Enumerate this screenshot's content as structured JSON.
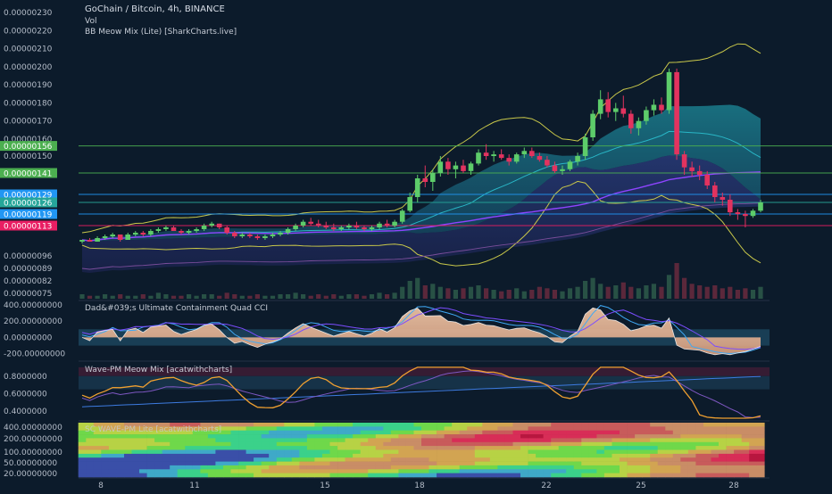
{
  "header": {
    "title": "GoChain / Bitcoin, 4h, BINANCE",
    "vol": "Vol",
    "indicator": "BB Meow Mix (Lite) [SharkCharts.live]"
  },
  "colors": {
    "background": "#0c1b2b",
    "up": "#5dcc6a",
    "down": "#e2335f",
    "label_green": "#4caf50",
    "label_blue": "#2196f3",
    "label_red": "#e91e63",
    "label_teal": "#26a69a",
    "band_yellow": "#c9c84a",
    "ma_purple": "#8e44ff",
    "wave_orange": "#f0a030"
  },
  "chart_data": [
    {
      "type": "candlestick",
      "title": "GoChain / Bitcoin, 4h, BINANCE",
      "y_ticks": [
        "0.00000230",
        "0.00000220",
        "0.00000210",
        "0.00000200",
        "0.00000190",
        "0.00000180",
        "0.00000170",
        "0.00000160",
        "0.00000150",
        "0.00000096",
        "0.00000089",
        "0.00000082",
        "0.00000075"
      ],
      "x_ticks": [
        "8",
        "11",
        "15",
        "18",
        "22",
        "25",
        "28"
      ],
      "price_labels": [
        {
          "text": "0.00000156",
          "color": "#4caf50"
        },
        {
          "text": "0.00000141",
          "color": "#4caf50"
        },
        {
          "text": "0.00000129",
          "color": "#2196f3"
        },
        {
          "text": "0.00000126",
          "color": "#26a69a"
        },
        {
          "text": "0.00000119",
          "color": "#2196f3"
        },
        {
          "text": "0.00000113",
          "color": "#e91e63"
        }
      ],
      "candles": [
        [
          1.04e-06,
          1.05e-06,
          1.03e-06,
          1.05e-06
        ],
        [
          1.05e-06,
          1.06e-06,
          1.04e-06,
          1.04e-06
        ],
        [
          1.04e-06,
          1.07e-06,
          1.04e-06,
          1.06e-06
        ],
        [
          1.06e-06,
          1.08e-06,
          1.05e-06,
          1.07e-06
        ],
        [
          1.07e-06,
          1.09e-06,
          1.06e-06,
          1.08e-06
        ],
        [
          1.08e-06,
          1.08e-06,
          1.04e-06,
          1.05e-06
        ],
        [
          1.05e-06,
          1.09e-06,
          1.05e-06,
          1.08e-06
        ],
        [
          1.08e-06,
          1.1e-06,
          1.07e-06,
          1.09e-06
        ],
        [
          1.09e-06,
          1.1e-06,
          1.07e-06,
          1.08e-06
        ],
        [
          1.08e-06,
          1.11e-06,
          1.07e-06,
          1.1e-06
        ],
        [
          1.1e-06,
          1.12e-06,
          1.09e-06,
          1.11e-06
        ],
        [
          1.11e-06,
          1.13e-06,
          1.1e-06,
          1.12e-06
        ],
        [
          1.12e-06,
          1.13e-06,
          1.1e-06,
          1.1e-06
        ],
        [
          1.1e-06,
          1.11e-06,
          1.08e-06,
          1.09e-06
        ],
        [
          1.09e-06,
          1.11e-06,
          1.08e-06,
          1.1e-06
        ],
        [
          1.1e-06,
          1.12e-06,
          1.09e-06,
          1.11e-06
        ],
        [
          1.11e-06,
          1.14e-06,
          1.1e-06,
          1.13e-06
        ],
        [
          1.13e-06,
          1.15e-06,
          1.12e-06,
          1.14e-06
        ],
        [
          1.14e-06,
          1.14e-06,
          1.11e-06,
          1.12e-06
        ],
        [
          1.12e-06,
          1.13e-06,
          1.08e-06,
          1.09e-06
        ],
        [
          1.09e-06,
          1.1e-06,
          1.06e-06,
          1.07e-06
        ],
        [
          1.07e-06,
          1.09e-06,
          1.06e-06,
          1.08e-06
        ],
        [
          1.08e-06,
          1.09e-06,
          1.06e-06,
          1.07e-06
        ],
        [
          1.07e-06,
          1.08e-06,
          1.05e-06,
          1.06e-06
        ],
        [
          1.06e-06,
          1.08e-06,
          1.05e-06,
          1.07e-06
        ],
        [
          1.07e-06,
          1.09e-06,
          1.06e-06,
          1.08e-06
        ],
        [
          1.08e-06,
          1.1e-06,
          1.07e-06,
          1.09e-06
        ],
        [
          1.09e-06,
          1.12e-06,
          1.08e-06,
          1.11e-06
        ],
        [
          1.11e-06,
          1.14e-06,
          1.1e-06,
          1.13e-06
        ],
        [
          1.13e-06,
          1.16e-06,
          1.12e-06,
          1.15e-06
        ],
        [
          1.15e-06,
          1.17e-06,
          1.13e-06,
          1.14e-06
        ],
        [
          1.14e-06,
          1.16e-06,
          1.12e-06,
          1.13e-06
        ],
        [
          1.13e-06,
          1.15e-06,
          1.11e-06,
          1.12e-06
        ],
        [
          1.12e-06,
          1.14e-06,
          1.1e-06,
          1.11e-06
        ],
        [
          1.11e-06,
          1.13e-06,
          1.1e-06,
          1.12e-06
        ],
        [
          1.12e-06,
          1.14e-06,
          1.11e-06,
          1.13e-06
        ],
        [
          1.13e-06,
          1.15e-06,
          1.11e-06,
          1.12e-06
        ],
        [
          1.12e-06,
          1.13e-06,
          1.1e-06,
          1.11e-06
        ],
        [
          1.11e-06,
          1.13e-06,
          1.1e-06,
          1.12e-06
        ],
        [
          1.12e-06,
          1.15e-06,
          1.11e-06,
          1.14e-06
        ],
        [
          1.14e-06,
          1.16e-06,
          1.12e-06,
          1.13e-06
        ],
        [
          1.13e-06,
          1.16e-06,
          1.12e-06,
          1.15e-06
        ],
        [
          1.15e-06,
          1.22e-06,
          1.14e-06,
          1.21e-06
        ],
        [
          1.21e-06,
          1.3e-06,
          1.2e-06,
          1.28e-06
        ],
        [
          1.28e-06,
          1.4e-06,
          1.26e-06,
          1.38e-06
        ],
        [
          1.38e-06,
          1.45e-06,
          1.33e-06,
          1.36e-06
        ],
        [
          1.36e-06,
          1.43e-06,
          1.31e-06,
          1.41e-06
        ],
        [
          1.41e-06,
          1.5e-06,
          1.39e-06,
          1.47e-06
        ],
        [
          1.47e-06,
          1.49e-06,
          1.4e-06,
          1.43e-06
        ],
        [
          1.43e-06,
          1.47e-06,
          1.38e-06,
          1.45e-06
        ],
        [
          1.45e-06,
          1.48e-06,
          1.41e-06,
          1.42e-06
        ],
        [
          1.42e-06,
          1.47e-06,
          1.4e-06,
          1.46e-06
        ],
        [
          1.46e-06,
          1.54e-06,
          1.45e-06,
          1.52e-06
        ],
        [
          1.52e-06,
          1.57e-06,
          1.48e-06,
          1.5e-06
        ],
        [
          1.5e-06,
          1.53e-06,
          1.47e-06,
          1.51e-06
        ],
        [
          1.51e-06,
          1.54e-06,
          1.48e-06,
          1.49e-06
        ],
        [
          1.49e-06,
          1.51e-06,
          1.45e-06,
          1.47e-06
        ],
        [
          1.47e-06,
          1.52e-06,
          1.46e-06,
          1.51e-06
        ],
        [
          1.51e-06,
          1.55e-06,
          1.49e-06,
          1.53e-06
        ],
        [
          1.53e-06,
          1.55e-06,
          1.49e-06,
          1.5e-06
        ],
        [
          1.5e-06,
          1.52e-06,
          1.47e-06,
          1.48e-06
        ],
        [
          1.48e-06,
          1.5e-06,
          1.44e-06,
          1.45e-06
        ],
        [
          1.45e-06,
          1.47e-06,
          1.41e-06,
          1.42e-06
        ],
        [
          1.42e-06,
          1.45e-06,
          1.4e-06,
          1.43e-06
        ],
        [
          1.43e-06,
          1.48e-06,
          1.42e-06,
          1.47e-06
        ],
        [
          1.47e-06,
          1.52e-06,
          1.45e-06,
          1.5e-06
        ],
        [
          1.5e-06,
          1.63e-06,
          1.48e-06,
          1.61e-06
        ],
        [
          1.61e-06,
          1.76e-06,
          1.59e-06,
          1.74e-06
        ],
        [
          1.74e-06,
          1.87e-06,
          1.71e-06,
          1.82e-06
        ],
        [
          1.82e-06,
          1.86e-06,
          1.72e-06,
          1.75e-06
        ],
        [
          1.75e-06,
          1.8e-06,
          1.7e-06,
          1.77e-06
        ],
        [
          1.77e-06,
          1.84e-06,
          1.72e-06,
          1.74e-06
        ],
        [
          1.74e-06,
          1.76e-06,
          1.63e-06,
          1.66e-06
        ],
        [
          1.66e-06,
          1.72e-06,
          1.62e-06,
          1.7e-06
        ],
        [
          1.7e-06,
          1.78e-06,
          1.68e-06,
          1.76e-06
        ],
        [
          1.76e-06,
          1.82e-06,
          1.73e-06,
          1.79e-06
        ],
        [
          1.79e-06,
          1.83e-06,
          1.74e-06,
          1.76e-06
        ],
        [
          1.76e-06,
          1.99e-06,
          1.74e-06,
          1.97e-06
        ],
        [
          1.97e-06,
          1.99e-06,
          1.48e-06,
          1.51e-06
        ],
        [
          1.51e-06,
          1.53e-06,
          1.4e-06,
          1.44e-06
        ],
        [
          1.44e-06,
          1.47e-06,
          1.39e-06,
          1.42e-06
        ],
        [
          1.42e-06,
          1.45e-06,
          1.37e-06,
          1.4e-06
        ],
        [
          1.4e-06,
          1.42e-06,
          1.32e-06,
          1.34e-06
        ],
        [
          1.34e-06,
          1.36e-06,
          1.26e-06,
          1.28e-06
        ],
        [
          1.28e-06,
          1.3e-06,
          1.24e-06,
          1.27e-06
        ],
        [
          1.27e-06,
          1.29e-06,
          1.18e-06,
          1.2e-06
        ],
        [
          1.2e-06,
          1.22e-06,
          1.16e-06,
          1.19e-06
        ],
        [
          1.19e-06,
          1.21e-06,
          1.12e-06,
          1.18e-06
        ],
        [
          1.18e-06,
          1.22e-06,
          1.17e-06,
          1.21e-06
        ],
        [
          1.21e-06,
          1.27e-06,
          1.2e-06,
          1.26e-06
        ]
      ],
      "volume": [
        3,
        2,
        2,
        3,
        2,
        3,
        2,
        2,
        3,
        2,
        4,
        3,
        2,
        2,
        3,
        2,
        3,
        3,
        2,
        4,
        3,
        2,
        2,
        3,
        2,
        2,
        3,
        3,
        4,
        3,
        2,
        3,
        2,
        3,
        2,
        3,
        3,
        2,
        3,
        4,
        3,
        4,
        8,
        12,
        14,
        9,
        10,
        8,
        7,
        6,
        7,
        8,
        9,
        7,
        6,
        5,
        6,
        7,
        5,
        6,
        8,
        7,
        6,
        5,
        7,
        8,
        12,
        14,
        10,
        8,
        9,
        11,
        8,
        7,
        9,
        10,
        8,
        16,
        24,
        14,
        10,
        9,
        8,
        9,
        7,
        8,
        6,
        7,
        6,
        8
      ]
    },
    {
      "type": "line",
      "title": "Dad&#039;s Ultimate Containment Quad CCI",
      "y_ticks": [
        "400.00000000",
        "200.00000000",
        "0.00000000",
        "-200.00000000"
      ],
      "ylim": [
        -280,
        420
      ]
    },
    {
      "type": "line",
      "title": "Wave-PM Meow Mix [acatwithcharts]",
      "y_ticks": [
        "0.8000000",
        "0.6000000",
        "0.4000000"
      ],
      "ylim": [
        0.3,
        0.95
      ]
    },
    {
      "type": "heatmap",
      "title": "SC WAVE-PM Lite [acatwithcharts]",
      "y_ticks": [
        "400.00000000",
        "200.00000000",
        "100.00000000",
        "50.00000000",
        "20.00000000"
      ]
    }
  ]
}
